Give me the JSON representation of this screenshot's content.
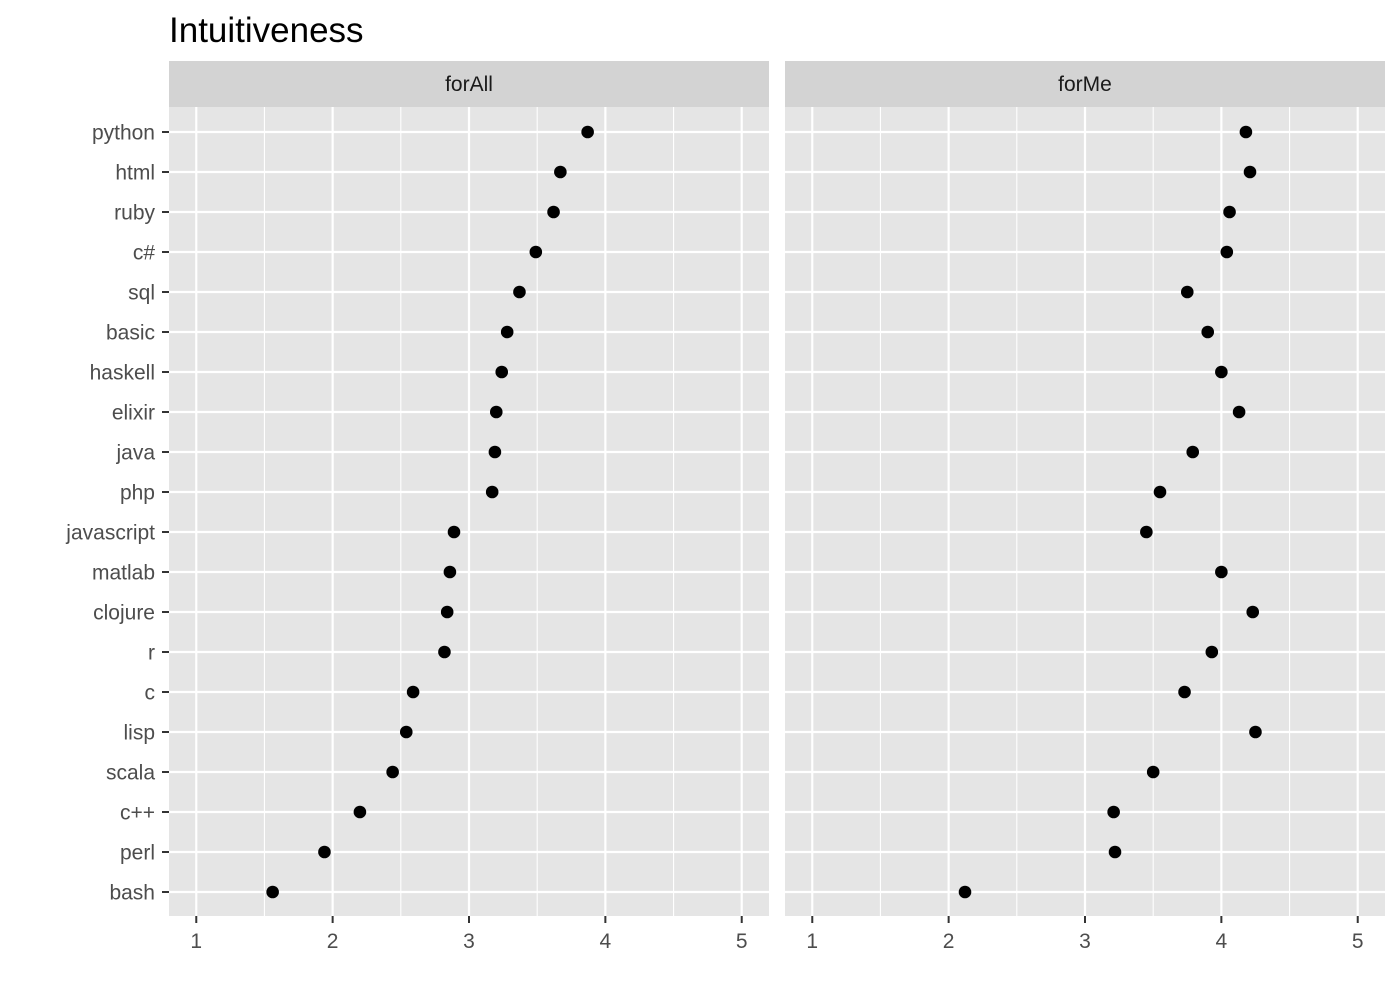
{
  "chart_data": {
    "type": "scatter",
    "title": "Intuitiveness",
    "xlabel": "",
    "ylabel": "",
    "xlim": [
      0.8,
      5.2
    ],
    "x_ticks": [
      1,
      2,
      3,
      4,
      5
    ],
    "grid": true,
    "legend": "none",
    "categories": [
      "python",
      "html",
      "ruby",
      "c#",
      "sql",
      "basic",
      "haskell",
      "elixir",
      "java",
      "php",
      "javascript",
      "matlab",
      "clojure",
      "r",
      "c",
      "lisp",
      "scala",
      "c++",
      "perl",
      "bash"
    ],
    "facets": [
      {
        "name": "forAll",
        "values": [
          3.87,
          3.67,
          3.62,
          3.49,
          3.37,
          3.28,
          3.24,
          3.2,
          3.19,
          3.17,
          2.89,
          2.86,
          2.84,
          2.82,
          2.59,
          2.54,
          2.44,
          2.2,
          1.94,
          1.56
        ]
      },
      {
        "name": "forMe",
        "values": [
          4.18,
          4.21,
          4.06,
          4.04,
          3.75,
          3.9,
          4.0,
          4.13,
          3.79,
          3.55,
          3.45,
          4.0,
          4.23,
          3.93,
          3.73,
          4.25,
          3.5,
          3.21,
          3.22,
          2.12
        ]
      }
    ],
    "colors": {
      "panel_background": "#e5e5e5",
      "strip_background": "#d3d3d3",
      "grid_line": "#ffffff",
      "point": "#000000",
      "tick_mark": "#333333"
    }
  }
}
